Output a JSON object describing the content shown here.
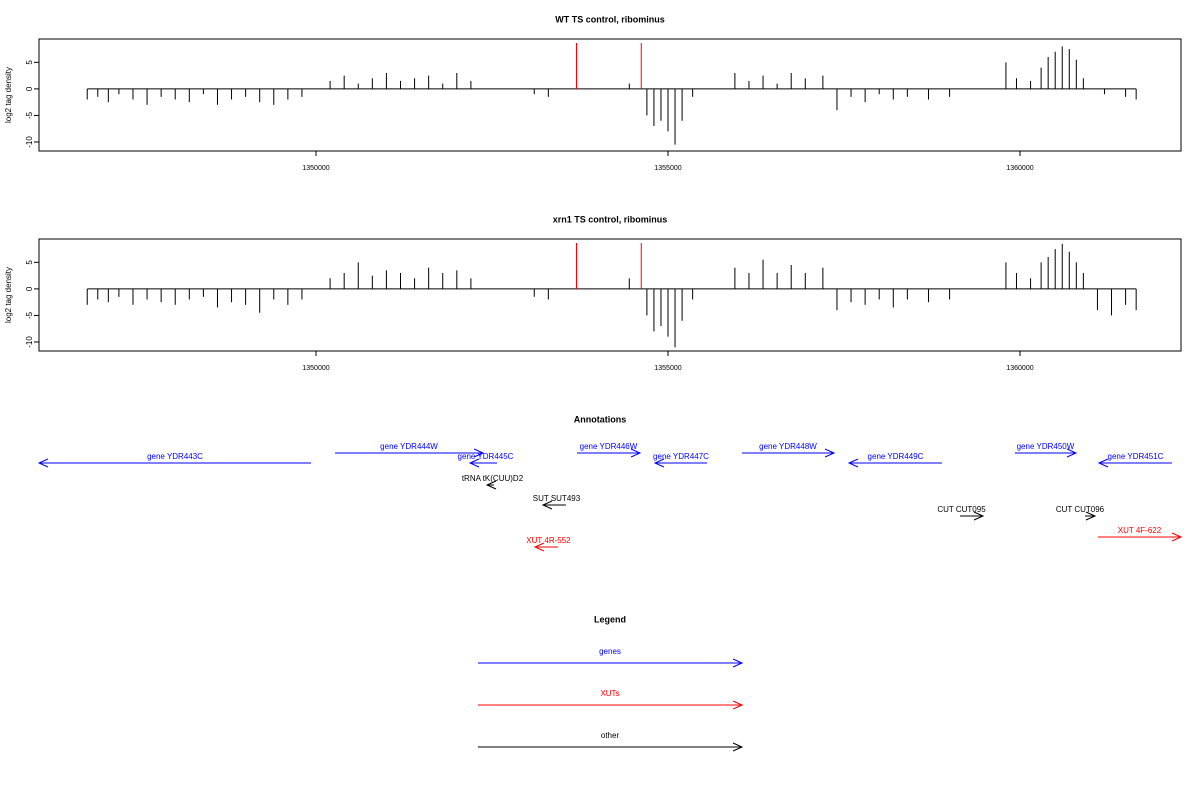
{
  "chart_data": [
    {
      "type": "bar",
      "title": "WT TS control, ribominus",
      "y_label": "log2 tag density",
      "x": [
        1346750,
        1346900,
        1347050,
        1347200,
        1347400,
        1347600,
        1347800,
        1348000,
        1348200,
        1348400,
        1348600,
        1348800,
        1349000,
        1349200,
        1349400,
        1349600,
        1349800,
        1350200,
        1350400,
        1350600,
        1350800,
        1351000,
        1351200,
        1351400,
        1351600,
        1351800,
        1352000,
        1352200,
        1353100,
        1353300,
        1354450,
        1354700,
        1354800,
        1354900,
        1355000,
        1355100,
        1355200,
        1355350,
        1355950,
        1356150,
        1356350,
        1356550,
        1356750,
        1356950,
        1357200,
        1357400,
        1357600,
        1357800,
        1358000,
        1358200,
        1358400,
        1358700,
        1359000,
        1359800,
        1359950,
        1360150,
        1360300,
        1360400,
        1360500,
        1360600,
        1360700,
        1360800,
        1360900,
        1361200,
        1361500,
        1361650
      ],
      "values": [
        -2,
        -1.5,
        -2.5,
        -1,
        -2,
        -3,
        -1.5,
        -2,
        -2.5,
        -1,
        -3,
        -2,
        -1.5,
        -2.5,
        -3,
        -2,
        -1.5,
        1.5,
        2.5,
        1,
        2,
        3,
        1.5,
        2,
        2.5,
        1,
        3,
        1.5,
        -1,
        -1.5,
        1,
        -5,
        -7,
        -6,
        -8,
        -10.5,
        -6,
        -1.5,
        3,
        1.5,
        2.5,
        1,
        3,
        2,
        2.5,
        -4,
        -1.5,
        -2.5,
        -1,
        -2,
        -1.5,
        -2,
        -1.5,
        5,
        2,
        1.5,
        4,
        6,
        7,
        8,
        7.5,
        5.5,
        2,
        -1,
        -1.5,
        -2
      ],
      "color": "#000000",
      "markers": [
        1353700,
        1354620
      ],
      "marker_color": "#ff0000",
      "xlim": [
        1346065,
        1362287
      ],
      "xticks": [
        1350000,
        1355000,
        1360000
      ],
      "ylim": [
        -11.7,
        9.4
      ],
      "yticks": [
        5,
        0,
        -5,
        -10
      ]
    },
    {
      "type": "bar",
      "title": "xrn1 TS control, ribominus",
      "y_label": "log2 tag density",
      "x": [
        1346750,
        1346900,
        1347050,
        1347200,
        1347400,
        1347600,
        1347800,
        1348000,
        1348200,
        1348400,
        1348600,
        1348800,
        1349000,
        1349200,
        1349400,
        1349600,
        1349800,
        1350200,
        1350400,
        1350600,
        1350800,
        1351000,
        1351200,
        1351400,
        1351600,
        1351800,
        1352000,
        1352200,
        1353100,
        1353300,
        1354450,
        1354700,
        1354800,
        1354900,
        1355000,
        1355100,
        1355200,
        1355350,
        1355950,
        1356150,
        1356350,
        1356550,
        1356750,
        1356950,
        1357200,
        1357400,
        1357600,
        1357800,
        1358000,
        1358200,
        1358400,
        1358700,
        1359000,
        1359800,
        1359950,
        1360150,
        1360300,
        1360400,
        1360500,
        1360600,
        1360700,
        1360800,
        1360900,
        1361100,
        1361300,
        1361500,
        1361650
      ],
      "values": [
        -3,
        -2,
        -2.5,
        -1.5,
        -3,
        -2,
        -2.5,
        -3,
        -2,
        -1.5,
        -3.5,
        -2.5,
        -3,
        -4.5,
        -2,
        -3,
        -2,
        2,
        3,
        5,
        2.5,
        3.5,
        3,
        2,
        4,
        3,
        3.5,
        2,
        -1.5,
        -2,
        2,
        -5,
        -8,
        -7,
        -9,
        -11,
        -6,
        -2,
        4,
        3,
        5.5,
        3,
        4.5,
        3,
        4,
        -4,
        -2.5,
        -3,
        -2,
        -3.5,
        -2,
        -2.5,
        -2,
        5,
        3,
        2,
        5,
        6,
        7.5,
        8.5,
        7,
        5,
        3,
        -4,
        -5,
        -3,
        -4
      ],
      "color": "#000000",
      "markers": [
        1353700,
        1354620
      ],
      "marker_color": "#ff0000",
      "xlim": [
        1346065,
        1362287
      ],
      "xticks": [
        1350000,
        1355000,
        1360000
      ],
      "ylim": [
        -11.7,
        9.4
      ],
      "yticks": [
        5,
        0,
        -5,
        -10
      ]
    }
  ],
  "annotations": {
    "title": "Annotations",
    "items": [
      {
        "label": "gene YDR443C",
        "start": 1346065,
        "end": 1349929,
        "strand": "-",
        "color": "#0000ff"
      },
      {
        "label": "gene YDR444W",
        "start": 1350270,
        "end": 1352372,
        "strand": "+",
        "color": "#0000ff"
      },
      {
        "label": "gene YDR445C",
        "start": 1352187,
        "end": 1352571,
        "strand": "-",
        "color": "#0000ff"
      },
      {
        "label": "tRNA tK(CUU)D2",
        "start": 1352429,
        "end": 1352528,
        "strand": "-",
        "color": "#000000"
      },
      {
        "label": "SUT SUT493",
        "start": 1353224,
        "end": 1353550,
        "strand": "-",
        "color": "#000000"
      },
      {
        "label": "XUT 4R-552",
        "start": 1353110,
        "end": 1353437,
        "strand": "-",
        "color": "#ff0000"
      },
      {
        "label": "gene YDR446W",
        "start": 1353707,
        "end": 1354602,
        "strand": "+",
        "color": "#0000ff"
      },
      {
        "label": "gene YDR447C",
        "start": 1354815,
        "end": 1355554,
        "strand": "-",
        "color": "#0000ff"
      },
      {
        "label": "gene YDR448W",
        "start": 1356051,
        "end": 1357358,
        "strand": "+",
        "color": "#0000ff"
      },
      {
        "label": "gene YDR449C",
        "start": 1357571,
        "end": 1358892,
        "strand": "-",
        "color": "#0000ff"
      },
      {
        "label": "gene YDR450W",
        "start": 1359928,
        "end": 1360795,
        "strand": "+",
        "color": "#0000ff"
      },
      {
        "label": "gene YDR451C",
        "start": 1361122,
        "end": 1362159,
        "strand": "-",
        "color": "#0000ff"
      },
      {
        "label": "CUT CUT095",
        "start": 1359148,
        "end": 1359474,
        "strand": "+",
        "color": "#000000"
      },
      {
        "label": "CUT CUT096",
        "start": 1360923,
        "end": 1361065,
        "strand": "+",
        "color": "#000000"
      },
      {
        "label": "XUT 4F-622",
        "start": 1361108,
        "end": 1362287,
        "strand": "+",
        "color": "#ff0000"
      }
    ]
  },
  "legend": {
    "title": "Legend",
    "items": [
      {
        "name": "genes",
        "color": "#0000ff"
      },
      {
        "name": "XUTs",
        "color": "#ff0000"
      },
      {
        "name": "other",
        "color": "#000000"
      }
    ]
  }
}
